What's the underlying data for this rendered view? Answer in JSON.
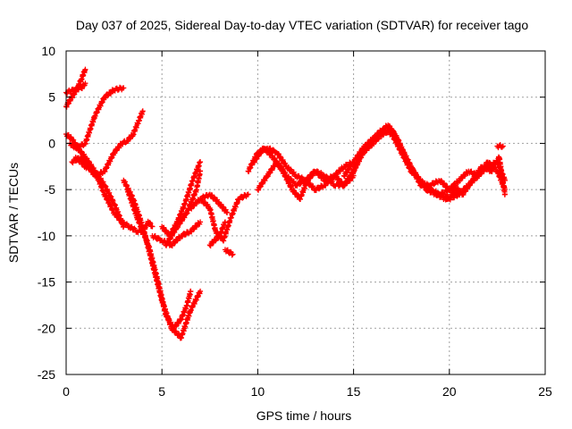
{
  "chart_data": {
    "type": "scatter",
    "title": "Day 037 of 2025, Sidereal Day-to-day VTEC variation (SDTVAR) for receiver tago",
    "xlabel": "GPS time / hours",
    "ylabel": "SDTVAR / TECUs",
    "xlim": [
      0,
      25
    ],
    "ylim": [
      -25,
      10
    ],
    "xticks": [
      "0",
      "5",
      "10",
      "15",
      "20",
      "25"
    ],
    "yticks": [
      "-25",
      "-20",
      "-15",
      "-10",
      "-5",
      "0",
      "5",
      "10"
    ],
    "grid": true,
    "series": [
      {
        "color": "#ff0000",
        "marker": "plus",
        "tracks": [
          {
            "x": [
              0.0,
              0.3,
              0.6,
              0.8,
              1.0
            ],
            "y": [
              4.0,
              5.0,
              6.0,
              7.0,
              8.0
            ]
          },
          {
            "x": [
              0.0,
              0.4,
              0.8,
              1.0
            ],
            "y": [
              5.5,
              5.8,
              6.0,
              6.5
            ]
          },
          {
            "x": [
              0.0,
              0.3,
              0.6,
              1.0,
              1.5,
              2.0,
              2.5,
              3.0
            ],
            "y": [
              1.0,
              0.5,
              -0.5,
              -1.5,
              -3.0,
              -4.5,
              -6.5,
              -9.0
            ]
          },
          {
            "x": [
              0.2,
              0.5,
              1.0,
              1.5,
              2.0,
              2.5,
              3.0
            ],
            "y": [
              0.0,
              -0.5,
              0.0,
              3.0,
              5.0,
              5.8,
              6.0
            ]
          },
          {
            "x": [
              0.3,
              0.8,
              1.5,
              2.0,
              2.5,
              2.9,
              3.2,
              3.5,
              3.8,
              4.0
            ],
            "y": [
              -2.0,
              -1.5,
              -3.5,
              -3.0,
              -1.0,
              0.0,
              0.3,
              1.0,
              2.5,
              3.5
            ]
          },
          {
            "x": [
              0.5,
              1.0,
              1.5,
              2.0,
              2.5,
              2.9,
              3.3,
              3.7,
              4.0,
              4.3,
              4.5
            ],
            "y": [
              -1.5,
              -2.5,
              -3.0,
              -5.5,
              -7.5,
              -8.5,
              -9.0,
              -9.5,
              -9.5,
              -8.5,
              -9.0
            ]
          },
          {
            "x": [
              3.0,
              3.5,
              4.0,
              4.5,
              5.0,
              5.5,
              6.0,
              6.5,
              7.0
            ],
            "y": [
              -4.0,
              -6.0,
              -9.0,
              -13.0,
              -17.0,
              -20.0,
              -21.0,
              -18.0,
              -16.0
            ]
          },
          {
            "x": [
              3.2,
              3.7,
              4.3,
              4.8,
              5.2,
              5.6,
              6.0,
              6.3,
              6.5
            ],
            "y": [
              -5.0,
              -8.0,
              -11.0,
              -15.0,
              -18.5,
              -20.0,
              -19.0,
              -17.5,
              -16.0
            ]
          },
          {
            "x": [
              4.5,
              5.0,
              5.5,
              6.0,
              6.5,
              7.0
            ],
            "y": [
              -10.0,
              -10.5,
              -11.0,
              -10.0,
              -9.5,
              -8.5
            ]
          },
          {
            "x": [
              5.0,
              5.4,
              5.8,
              6.2,
              6.6,
              7.0
            ],
            "y": [
              -9.0,
              -10.0,
              -8.5,
              -6.5,
              -4.0,
              -2.0
            ]
          },
          {
            "x": [
              5.2,
              5.8,
              6.3,
              6.8,
              7.0
            ],
            "y": [
              -11.0,
              -9.0,
              -7.5,
              -5.0,
              -3.0
            ]
          },
          {
            "x": [
              6.5,
              7.0,
              7.5,
              8.0,
              8.4
            ],
            "y": [
              -7.0,
              -6.0,
              -5.5,
              -6.5,
              -7.5
            ]
          },
          {
            "x": [
              7.0,
              7.5,
              7.8,
              8.2,
              8.6,
              9.0,
              9.5
            ],
            "y": [
              -6.0,
              -7.0,
              -9.5,
              -10.5,
              -8.0,
              -6.0,
              -5.5
            ]
          },
          {
            "x": [
              7.5,
              8.0,
              8.3
            ],
            "y": [
              -11.0,
              -10.0,
              -8.5
            ]
          },
          {
            "x": [
              8.3,
              8.7
            ],
            "y": [
              -11.5,
              -12.0
            ]
          },
          {
            "x": [
              9.5,
              10.0,
              10.5,
              11.0,
              11.5,
              12.0,
              12.5,
              13.0,
              13.5,
              14.0,
              14.5,
              15.0
            ],
            "y": [
              -3.0,
              -1.0,
              -0.5,
              -1.0,
              -2.5,
              -3.5,
              -4.0,
              -3.0,
              -3.5,
              -4.5,
              -4.5,
              -3.0
            ]
          },
          {
            "x": [
              9.8,
              10.3,
              10.8,
              11.3,
              11.8,
              12.2,
              12.6,
              13.0,
              13.5,
              14.0,
              14.5,
              15.0
            ],
            "y": [
              -2.0,
              -0.5,
              -1.5,
              -3.0,
              -5.0,
              -6.0,
              -4.0,
              -3.0,
              -4.0,
              -3.5,
              -2.5,
              -2.0
            ]
          },
          {
            "x": [
              10.0,
              10.5,
              11.0,
              11.5,
              12.0,
              12.5,
              13.0,
              13.5,
              14.0,
              14.5,
              15.0
            ],
            "y": [
              -5.0,
              -3.5,
              -2.0,
              -3.5,
              -4.5,
              -4.0,
              -5.0,
              -4.5,
              -3.5,
              -4.5,
              -3.5
            ]
          },
          {
            "x": [
              14.5,
              15.0,
              15.5,
              16.0,
              16.5,
              17.0,
              17.5,
              18.0,
              18.5,
              19.0,
              19.5,
              20.0
            ],
            "y": [
              -3.5,
              -2.0,
              -0.5,
              0.5,
              1.5,
              1.0,
              -1.0,
              -3.0,
              -4.0,
              -5.0,
              -5.5,
              -5.0
            ]
          },
          {
            "x": [
              14.8,
              15.3,
              15.8,
              16.3,
              16.8,
              17.3,
              17.8,
              18.3,
              18.8,
              19.3,
              19.8,
              20.3
            ],
            "y": [
              -4.0,
              -1.5,
              0.0,
              1.0,
              2.0,
              0.5,
              -2.0,
              -3.5,
              -5.0,
              -5.5,
              -6.0,
              -5.5
            ]
          },
          {
            "x": [
              15.0,
              15.5,
              16.0,
              16.5,
              17.0,
              17.5,
              18.0,
              18.5,
              19.0,
              19.5,
              20.0,
              20.5
            ],
            "y": [
              -3.0,
              -1.0,
              0.0,
              1.0,
              1.5,
              -0.5,
              -2.5,
              -4.5,
              -4.5,
              -4.0,
              -5.0,
              -5.5
            ]
          },
          {
            "x": [
              19.5,
              20.0,
              20.5,
              21.0,
              21.5,
              22.0,
              22.5,
              22.9
            ],
            "y": [
              -5.5,
              -6.0,
              -5.5,
              -4.5,
              -3.5,
              -2.5,
              -2.0,
              -4.0
            ]
          },
          {
            "x": [
              20.0,
              20.5,
              21.0,
              21.5,
              22.0,
              22.5,
              22.9
            ],
            "y": [
              -5.0,
              -4.0,
              -3.0,
              -3.5,
              -2.0,
              -3.0,
              -5.0
            ]
          },
          {
            "x": [
              20.2,
              20.7,
              21.2,
              21.7,
              22.2,
              22.6,
              22.9
            ],
            "y": [
              -4.5,
              -5.5,
              -4.0,
              -2.5,
              -3.0,
              -1.5,
              -5.5
            ]
          },
          {
            "x": [
              22.5,
              22.8
            ],
            "y": [
              -0.3,
              -0.3
            ]
          }
        ]
      }
    ]
  }
}
